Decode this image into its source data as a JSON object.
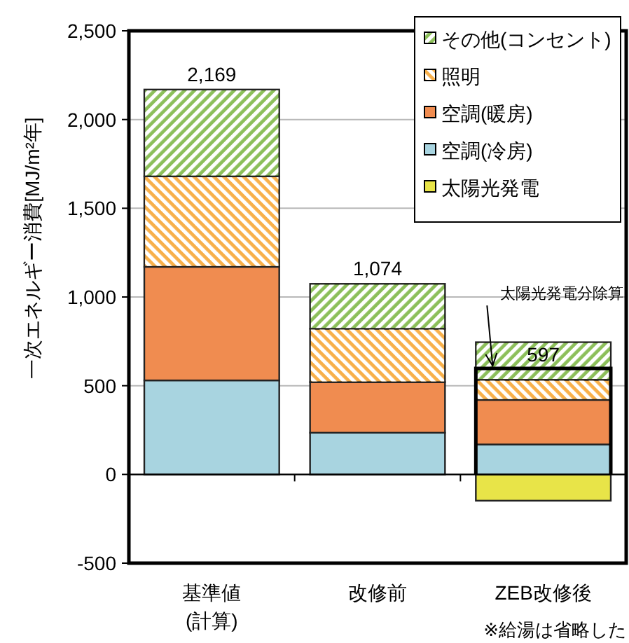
{
  "chart_data": {
    "type": "bar",
    "stacked": true,
    "ylabel": "一次エネルギー消費[MJ/m²年]",
    "categories": [
      "基準値\n(計算)",
      "改修前",
      "ZEB改修後"
    ],
    "series": [
      {
        "name": "空調(冷房)",
        "color": "#a8d4e0",
        "values": [
          530,
          235,
          169
        ]
      },
      {
        "name": "空調(暖房)",
        "color": "#f08c50",
        "values": [
          640,
          285,
          251
        ]
      },
      {
        "name": "照明",
        "color": "#f8b04a",
        "values": [
          510,
          301,
          113
        ]
      },
      {
        "name": "その他(コンセント)",
        "color": "#8cbf5a",
        "values": [
          489,
          253,
          212
        ]
      },
      {
        "name": "太陽光発電",
        "color": "#e8e448",
        "values": [
          null,
          null,
          -148
        ]
      }
    ],
    "totals": [
      "2,169",
      "1,074",
      "597"
    ],
    "ylim": [
      -500,
      2500
    ],
    "yticks": [
      {
        "value": -500,
        "label": "-500"
      },
      0,
      500,
      {
        "value": 1000,
        "label": "1,000"
      },
      {
        "value": 1500,
        "label": "1,500"
      },
      {
        "value": 2000,
        "label": "2,000"
      },
      {
        "value": 2500,
        "label": "2,500"
      }
    ],
    "grid": "y",
    "legend": "top right",
    "annotations": [
      "太陽光発電分除算",
      "※給湯は省略した"
    ]
  }
}
